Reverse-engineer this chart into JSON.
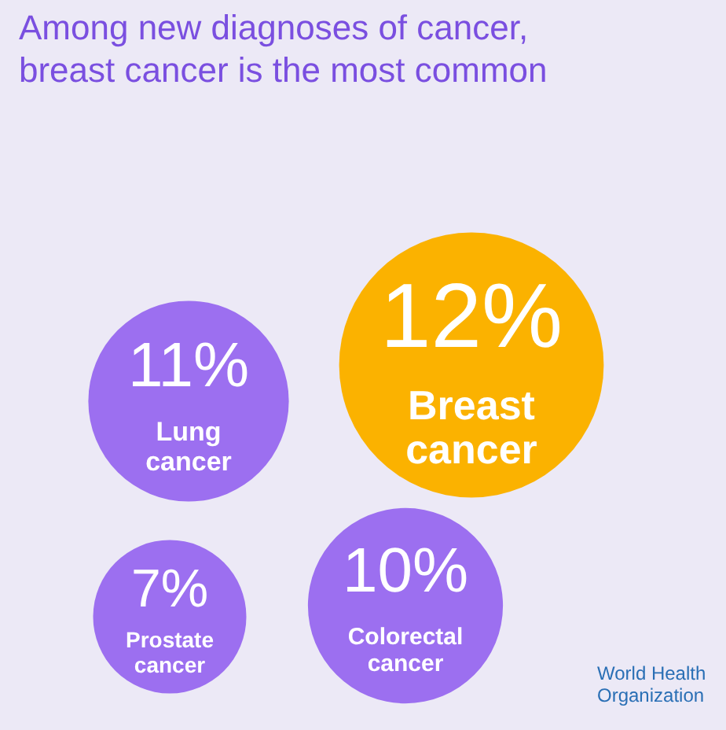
{
  "chart_data": {
    "type": "other",
    "title": "Among new diagnoses of cancer, breast cancer is the most common",
    "categories": [
      "Breast cancer",
      "Lung cancer",
      "Prostate cancer",
      "Colorectal cancer"
    ],
    "values": [
      12,
      11,
      7,
      10
    ],
    "colors": [
      "#fbb200",
      "#9c6ff0",
      "#9c6ff0",
      "#9c6ff0"
    ],
    "value_labels": [
      "12%",
      "11%",
      "7%",
      "10%"
    ],
    "annotations": [
      "World Health Organization"
    ]
  }
}
